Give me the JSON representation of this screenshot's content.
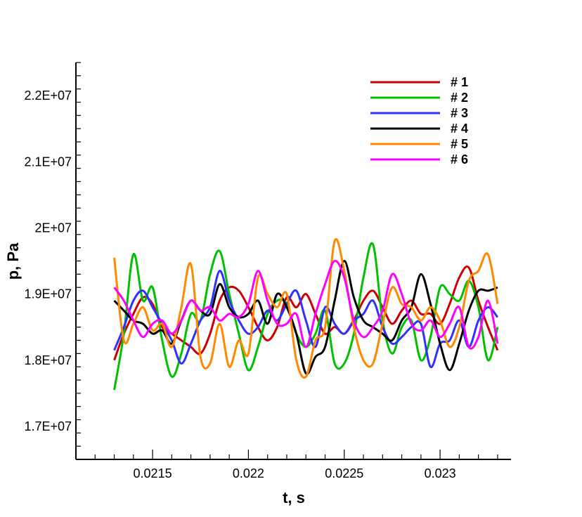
{
  "chart_data": {
    "type": "line",
    "title": "",
    "xlabel": "t, s",
    "ylabel": "p, Pa",
    "xlim": [
      0.0211,
      0.02337
    ],
    "ylim": [
      16500000,
      22500000
    ],
    "x_ticks": [
      0.0215,
      0.022,
      0.0225,
      0.023
    ],
    "x_tick_labels": [
      "0.0215",
      "0.022",
      "0.0225",
      "0.023"
    ],
    "y_ticks": [
      17000000,
      18000000,
      19000000,
      20000000,
      21000000,
      22000000
    ],
    "y_tick_labels": [
      "1.7E+07",
      "1.8E+07",
      "1.9E+07",
      "2E+07",
      "2.1E+07",
      "2.2E+07"
    ],
    "grid": false,
    "legend_position": "top-right",
    "series": [
      {
        "name": "# 1",
        "color": "#cc0000",
        "x": [
          0.0213,
          0.02135,
          0.0214,
          0.02145,
          0.0215,
          0.02155,
          0.0216,
          0.02165,
          0.0217,
          0.02175,
          0.0218,
          0.02185,
          0.0219,
          0.02195,
          0.022,
          0.02205,
          0.0221,
          0.02215,
          0.0222,
          0.02225,
          0.0223,
          0.02235,
          0.0224,
          0.02245,
          0.0225,
          0.02255,
          0.0226,
          0.02265,
          0.0227,
          0.02275,
          0.0228,
          0.02285,
          0.0229,
          0.02295,
          0.023,
          0.02305,
          0.0231,
          0.02315,
          0.0232,
          0.02325,
          0.0233
        ],
        "y": [
          18000000,
          18400000,
          18700000,
          18950000,
          18850000,
          18500000,
          18400000,
          18300000,
          18200000,
          18100000,
          18400000,
          18900000,
          19100000,
          19050000,
          18800000,
          18500000,
          18300000,
          18500000,
          18950000,
          18800000,
          19000000,
          18700000,
          18400000,
          18500000,
          18400000,
          18600000,
          18900000,
          19050000,
          18800000,
          18550000,
          18750000,
          18900000,
          18700000,
          18700000,
          18550000,
          18850000,
          19250000,
          19400000,
          18900000,
          18500000,
          18150000
        ]
      },
      {
        "name": "# 2",
        "color": "#00c000",
        "x": [
          0.0213,
          0.02135,
          0.0214,
          0.02145,
          0.0215,
          0.02155,
          0.0216,
          0.02165,
          0.0217,
          0.02175,
          0.0218,
          0.02185,
          0.0219,
          0.02195,
          0.022,
          0.02205,
          0.0221,
          0.02215,
          0.0222,
          0.02225,
          0.0223,
          0.02235,
          0.0224,
          0.02245,
          0.0225,
          0.02255,
          0.0226,
          0.02265,
          0.0227,
          0.02275,
          0.0228,
          0.02285,
          0.0229,
          0.02295,
          0.023,
          0.02305,
          0.0231,
          0.02315,
          0.0232,
          0.02325,
          0.0233
        ],
        "y": [
          17550000,
          18400000,
          19600000,
          18900000,
          19100000,
          18300000,
          17750000,
          18100000,
          18700000,
          18600000,
          19300000,
          19650000,
          19000000,
          18400000,
          17850000,
          18200000,
          18700000,
          18900000,
          18850000,
          18400000,
          18200000,
          18400000,
          18750000,
          17950000,
          17950000,
          18400000,
          19250000,
          19750000,
          18600000,
          18100000,
          18500000,
          18600000,
          18000000,
          18350000,
          19100000,
          19000000,
          18900000,
          19200000,
          18800000,
          18000000,
          18500000
        ]
      },
      {
        "name": "# 3",
        "color": "#3030ff",
        "x": [
          0.0213,
          0.02135,
          0.0214,
          0.02145,
          0.0215,
          0.02155,
          0.0216,
          0.02165,
          0.0217,
          0.02175,
          0.0218,
          0.02185,
          0.0219,
          0.02195,
          0.022,
          0.02205,
          0.0221,
          0.02215,
          0.0222,
          0.02225,
          0.0223,
          0.02235,
          0.0224,
          0.02245,
          0.0225,
          0.02255,
          0.0226,
          0.02265,
          0.0227,
          0.02275,
          0.0228,
          0.02285,
          0.0229,
          0.02295,
          0.023,
          0.02305,
          0.0231,
          0.02315,
          0.0232,
          0.02325,
          0.0233
        ],
        "y": [
          18150000,
          18500000,
          18900000,
          19050000,
          18800000,
          18550000,
          18300000,
          17950000,
          18250000,
          18600000,
          18800000,
          19350000,
          18900000,
          18600000,
          18400000,
          18500000,
          18750000,
          18600000,
          18850000,
          19050000,
          18600000,
          18200000,
          18800000,
          18550000,
          18400000,
          18600000,
          18700000,
          18900000,
          18500000,
          18250000,
          18350000,
          18500000,
          18550000,
          17900000,
          18250000,
          18300000,
          18600000,
          18200000,
          18600000,
          18800000,
          18650000
        ]
      },
      {
        "name": "# 4",
        "color": "#000000",
        "x": [
          0.0213,
          0.02135,
          0.0214,
          0.02145,
          0.0215,
          0.02155,
          0.0216,
          0.02165,
          0.0217,
          0.02175,
          0.0218,
          0.02185,
          0.0219,
          0.02195,
          0.022,
          0.02205,
          0.0221,
          0.02215,
          0.0222,
          0.02225,
          0.0223,
          0.02235,
          0.0224,
          0.02245,
          0.0225,
          0.02255,
          0.0226,
          0.02265,
          0.0227,
          0.02275,
          0.0228,
          0.02285,
          0.0229,
          0.02295,
          0.023,
          0.02305,
          0.0231,
          0.02315,
          0.0232,
          0.02325,
          0.0233
        ],
        "y": [
          18900000,
          18750000,
          18600000,
          18550000,
          18400000,
          18450000,
          18250000,
          18600000,
          18900000,
          18750000,
          18700000,
          19150000,
          18800000,
          18650000,
          18700000,
          18900000,
          18550000,
          19000000,
          18800000,
          18400000,
          17800000,
          18050000,
          18200000,
          18900000,
          19500000,
          18950000,
          18600000,
          18500000,
          18400000,
          18300000,
          18600000,
          18800000,
          19300000,
          18850000,
          18250000,
          17850000,
          18250000,
          18750000,
          19050000,
          19050000,
          19100000
        ]
      },
      {
        "name": "# 5",
        "color": "#ff8800",
        "x": [
          0.0213,
          0.02135,
          0.0214,
          0.02145,
          0.0215,
          0.02155,
          0.0216,
          0.02165,
          0.0217,
          0.02175,
          0.0218,
          0.02185,
          0.0219,
          0.02195,
          0.022,
          0.02205,
          0.0221,
          0.02215,
          0.0222,
          0.02225,
          0.0223,
          0.02235,
          0.0224,
          0.02245,
          0.0225,
          0.02255,
          0.0226,
          0.02265,
          0.0227,
          0.02275,
          0.0228,
          0.02285,
          0.0229,
          0.02295,
          0.023,
          0.02305,
          0.0231,
          0.02315,
          0.0232,
          0.02325,
          0.0233
        ],
        "y": [
          19550000,
          18300000,
          18550000,
          18800000,
          18450000,
          18550000,
          18200000,
          18800000,
          19450000,
          18050000,
          17950000,
          18550000,
          17900000,
          18300000,
          18100000,
          19250000,
          19000000,
          18800000,
          19000000,
          18000000,
          17750000,
          18300000,
          18500000,
          19800000,
          19350000,
          18500000,
          18000000,
          17950000,
          18550000,
          19100000,
          18850000,
          18800000,
          18600000,
          18800000,
          18600000,
          18200000,
          18500000,
          19200000,
          19350000,
          19600000,
          18850000
        ]
      },
      {
        "name": "# 6",
        "color": "#ff00ff",
        "x": [
          0.0213,
          0.02135,
          0.0214,
          0.02145,
          0.0215,
          0.02155,
          0.0216,
          0.02165,
          0.0217,
          0.02175,
          0.0218,
          0.02185,
          0.0219,
          0.02195,
          0.022,
          0.02205,
          0.0221,
          0.02215,
          0.0222,
          0.02225,
          0.0223,
          0.02235,
          0.0224,
          0.02245,
          0.0225,
          0.02255,
          0.0226,
          0.02265,
          0.0227,
          0.02275,
          0.0228,
          0.02285,
          0.0229,
          0.02295,
          0.023,
          0.02305,
          0.0231,
          0.02315,
          0.0232,
          0.02325,
          0.0233
        ],
        "y": [
          19100000,
          18900000,
          18600000,
          18350000,
          18550000,
          18600000,
          18400000,
          18600000,
          18900000,
          18750000,
          18800000,
          18600000,
          18700000,
          18650000,
          18850000,
          19350000,
          18900000,
          18550000,
          18550000,
          18700000,
          18200000,
          18700000,
          19150000,
          19500000,
          19250000,
          18600000,
          18350000,
          18500000,
          18750000,
          19300000,
          19000000,
          18550000,
          18450000,
          18600000,
          18350000,
          18550000,
          18800000,
          18200000,
          18350000,
          18900000,
          18250000
        ]
      }
    ]
  }
}
